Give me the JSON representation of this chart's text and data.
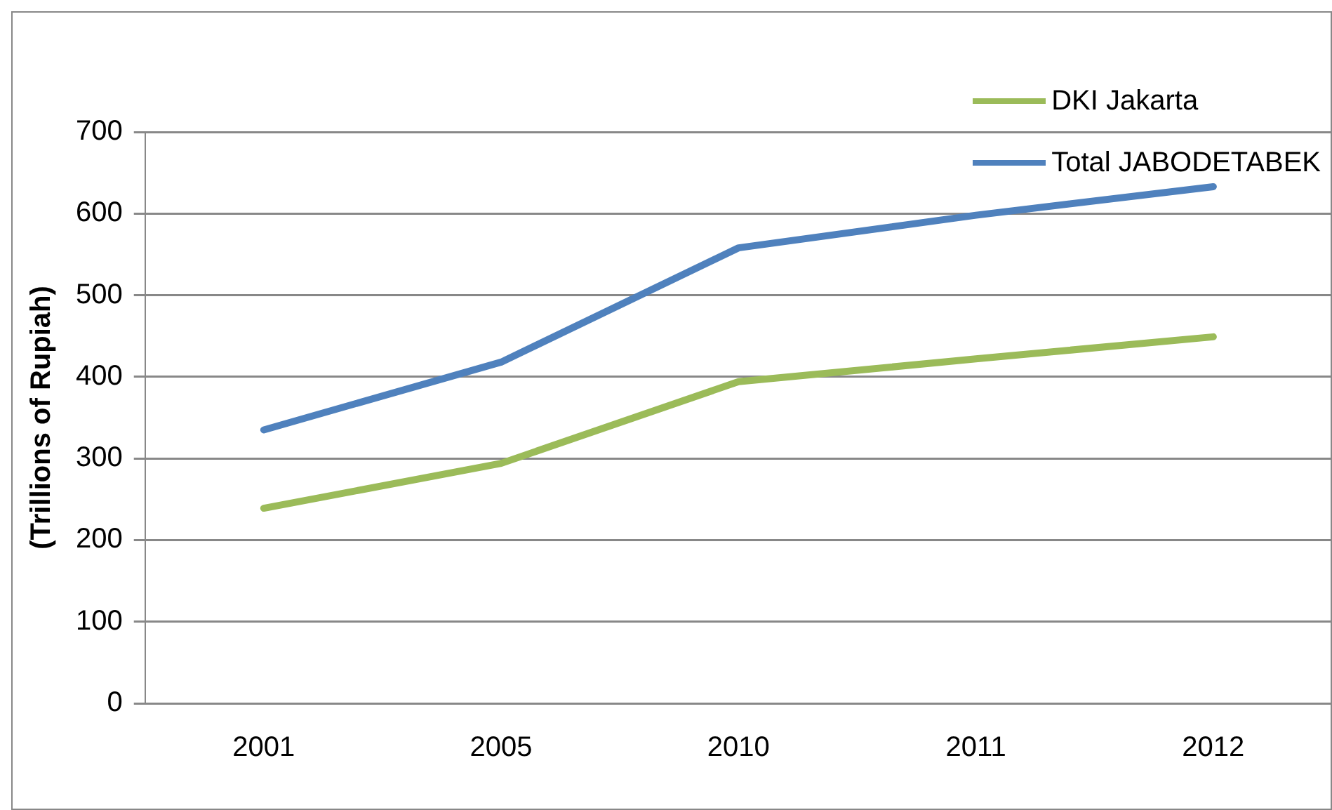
{
  "chart_data": {
    "type": "line",
    "ylabel": "(Trillions of Rupiah)",
    "categories": [
      "2001",
      "2005",
      "2010",
      "2011",
      "2012"
    ],
    "series": [
      {
        "name": "DKI Jakarta",
        "color": "#9bbb59",
        "values": [
          239,
          294,
          394,
          422,
          449
        ]
      },
      {
        "name": "Total JABODETABEK",
        "color": "#4f81bd",
        "values": [
          335,
          418,
          558,
          598,
          633
        ]
      }
    ],
    "ylim": [
      0,
      700
    ],
    "yticks": [
      0,
      100,
      200,
      300,
      400,
      500,
      600,
      700
    ],
    "grid": "y",
    "legend": "top right",
    "marker": "none",
    "line_style": "solid"
  }
}
